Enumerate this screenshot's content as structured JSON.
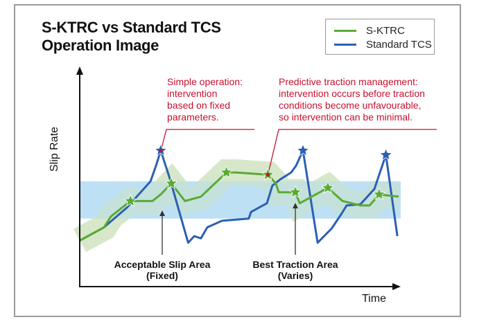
{
  "chart_data": {
    "type": "line",
    "title": "S-KTRC vs Standard TCS\nOperation Image",
    "title_lines": [
      "S-KTRC vs Standard TCS",
      "Operation Image"
    ],
    "xlabel": "Time",
    "ylabel": "Slip Rate",
    "xlim": [
      0,
      100
    ],
    "ylim": [
      0,
      100
    ],
    "grid": false,
    "legend_position": "top-right",
    "colors": {
      "s_ktrc": "#5aaa32",
      "standard_tcs": "#2b5fb4",
      "acceptable_band": "#b3daf3",
      "traction_band": "#d3e6c6",
      "annotation": "#c8102e"
    },
    "series": [
      {
        "name": "S-KTRC",
        "x": [
          0,
          7.6,
          9.8,
          15.9,
          22.8,
          25.4,
          28.7,
          33,
          38,
          46,
          48.9,
          59,
          61.5,
          62.4,
          67.6,
          69,
          77.8,
          82.4,
          88,
          90.9,
          93.9,
          100
        ],
        "y": [
          21,
          27,
          32,
          39,
          39,
          42,
          47,
          39,
          41,
          52,
          52,
          51,
          47,
          43,
          43,
          38,
          45,
          39,
          37,
          37,
          42,
          41
        ],
        "star_points": [
          3,
          6,
          9,
          11,
          14,
          16,
          20
        ]
      },
      {
        "name": "Standard TCS",
        "x": [
          0,
          7.6,
          14.8,
          22.2,
          23.9,
          25.4,
          28.3,
          34,
          35.9,
          38,
          40,
          44.6,
          53,
          53.7,
          58.7,
          60.4,
          63,
          66.3,
          67.8,
          70,
          74.6,
          79,
          82,
          83.7,
          88,
          92.4,
          96,
          99.6
        ],
        "y": [
          21,
          27,
          36,
          48,
          55,
          62,
          49,
          20,
          23,
          22,
          27,
          30,
          31,
          34,
          38,
          46,
          49,
          52,
          55,
          62,
          20,
          26.5,
          33,
          37,
          37.5,
          44.5,
          60,
          23
        ],
        "star_points": [
          5,
          19,
          26
        ]
      }
    ],
    "acceptable_slip_band": [
      31,
      48
    ],
    "best_traction_band_halfwidth": 6,
    "annotations": [
      {
        "label": "Simple operation: intervention based on fixed parameters.",
        "lines": [
          "Simple operation:",
          "intervention",
          "based on fixed",
          "parameters."
        ]
      },
      {
        "label": "Predictive traction management: intervention occurs before traction conditions become unfavourable, so intervention can be minimal.",
        "lines": [
          "Predictive traction management:",
          "intervention occurs before traction",
          "conditions become unfavourable,",
          "so intervention can be minimal."
        ]
      }
    ],
    "area_labels": [
      {
        "lines": [
          "Acceptable Slip Area",
          "(Fixed)"
        ]
      },
      {
        "lines": [
          "Best Traction Area",
          "(Varies)"
        ]
      }
    ]
  }
}
